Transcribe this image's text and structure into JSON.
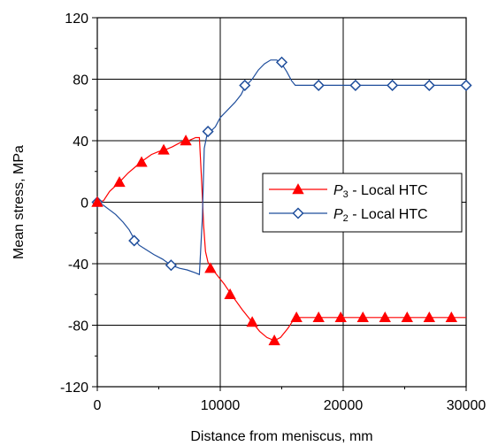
{
  "chart_data": {
    "type": "line",
    "xlabel": "Distance from meniscus, mm",
    "ylabel": "Mean stress, MPa",
    "xlim": [
      0,
      30000
    ],
    "ylim": [
      -120,
      120
    ],
    "x_ticks": [
      "0",
      "10000",
      "20000",
      "30000"
    ],
    "y_ticks": [
      "120",
      "80",
      "40",
      "0",
      "-40",
      "-80",
      "-120"
    ],
    "grid": "major",
    "legend_position": "center-right",
    "series": [
      {
        "name": "P3 - Local HTC",
        "symbol": "P",
        "subscript": "3",
        "suffix": " - Local HTC",
        "color": "#ff0000",
        "marker": "triangle",
        "line": [
          [
            0,
            0
          ],
          [
            500,
            1
          ],
          [
            1000,
            7
          ],
          [
            1800,
            13
          ],
          [
            2500,
            19
          ],
          [
            3100,
            23
          ],
          [
            3700,
            27
          ],
          [
            4400,
            31
          ],
          [
            5000,
            33
          ],
          [
            5500,
            34
          ],
          [
            6100,
            36
          ],
          [
            6800,
            39
          ],
          [
            7400,
            40
          ],
          [
            8000,
            42
          ],
          [
            8300,
            42
          ],
          [
            8500,
            12
          ],
          [
            8650,
            -15
          ],
          [
            8800,
            -32
          ],
          [
            9000,
            -39
          ],
          [
            9500,
            -45
          ],
          [
            10300,
            -53
          ],
          [
            10900,
            -60
          ],
          [
            11800,
            -70
          ],
          [
            12600,
            -78
          ],
          [
            13200,
            -84
          ],
          [
            13800,
            -88
          ],
          [
            14400,
            -90
          ],
          [
            14900,
            -88
          ],
          [
            15500,
            -82
          ],
          [
            16000,
            -76
          ],
          [
            16300,
            -75
          ],
          [
            30000,
            -75
          ]
        ],
        "markers": [
          [
            0,
            0
          ],
          [
            1800,
            13
          ],
          [
            3600,
            26
          ],
          [
            5400,
            34
          ],
          [
            7200,
            40
          ],
          [
            9200,
            -43
          ],
          [
            10800,
            -60
          ],
          [
            12600,
            -78
          ],
          [
            14400,
            -90
          ],
          [
            16200,
            -75
          ],
          [
            18000,
            -75
          ],
          [
            19800,
            -75
          ],
          [
            21600,
            -75
          ],
          [
            23400,
            -75
          ],
          [
            25200,
            -75
          ],
          [
            27000,
            -75
          ],
          [
            28800,
            -75
          ]
        ]
      },
      {
        "name": "P2 - Local HTC",
        "symbol": "P",
        "subscript": "2",
        "suffix": " - Local HTC",
        "color": "#1f4e9c",
        "marker": "diamond",
        "line": [
          [
            0,
            0
          ],
          [
            500,
            -2
          ],
          [
            1000,
            -5
          ],
          [
            1500,
            -8
          ],
          [
            2100,
            -13
          ],
          [
            2600,
            -18
          ],
          [
            3000,
            -24
          ],
          [
            3400,
            -28
          ],
          [
            4000,
            -31
          ],
          [
            4600,
            -34
          ],
          [
            5300,
            -37
          ],
          [
            6000,
            -41
          ],
          [
            6700,
            -43
          ],
          [
            7300,
            -44
          ],
          [
            8000,
            -46
          ],
          [
            8300,
            -47
          ],
          [
            8550,
            -10
          ],
          [
            8700,
            35
          ],
          [
            8900,
            43
          ],
          [
            9200,
            46
          ],
          [
            9600,
            49
          ],
          [
            10000,
            55
          ],
          [
            10600,
            60
          ],
          [
            11200,
            65
          ],
          [
            11700,
            70
          ],
          [
            12000,
            75
          ],
          [
            12600,
            80
          ],
          [
            13100,
            86
          ],
          [
            13600,
            90
          ],
          [
            14100,
            92.5
          ],
          [
            14600,
            92.5
          ],
          [
            15000,
            90
          ],
          [
            15400,
            85
          ],
          [
            15800,
            79
          ],
          [
            16100,
            76
          ],
          [
            16400,
            76
          ],
          [
            30000,
            76
          ]
        ],
        "markers": [
          [
            0,
            0
          ],
          [
            3000,
            -25
          ],
          [
            6000,
            -41
          ],
          [
            9000,
            46
          ],
          [
            12000,
            76
          ],
          [
            15000,
            91
          ],
          [
            18000,
            76
          ],
          [
            21000,
            76
          ],
          [
            24000,
            76
          ],
          [
            27000,
            76
          ],
          [
            30000,
            76
          ]
        ]
      }
    ]
  }
}
